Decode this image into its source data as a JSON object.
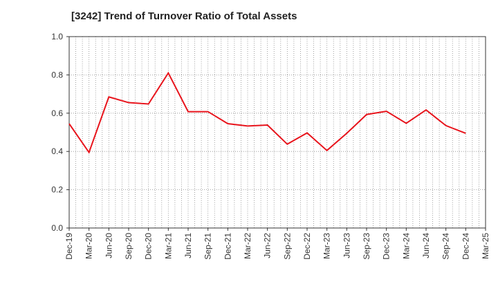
{
  "chart_data": {
    "type": "line",
    "title": "[3242]  Trend of Turnover Ratio of Total Assets",
    "xlabel": "",
    "ylabel": "",
    "ylim": [
      0,
      1.0
    ],
    "yticks": [
      "0.0",
      "0.2",
      "0.4",
      "0.6",
      "0.8",
      "1.0"
    ],
    "x_tick_labels": [
      "Dec-19",
      "Mar-20",
      "Jun-20",
      "Sep-20",
      "Dec-20",
      "Mar-21",
      "Jun-21",
      "Sep-21",
      "Dec-21",
      "Mar-22",
      "Jun-22",
      "Sep-22",
      "Dec-22",
      "Mar-23",
      "Jun-23",
      "Sep-23",
      "Dec-23",
      "Mar-24",
      "Jun-24",
      "Sep-24",
      "Dec-24",
      "Mar-25"
    ],
    "grid": true,
    "legend": "none",
    "series": [
      {
        "color": "#e8141c",
        "x": [
          "Dec-19",
          "Mar-20",
          "Jun-20",
          "Sep-20",
          "Dec-20",
          "Mar-21",
          "Jun-21",
          "Sep-21",
          "Dec-21",
          "Mar-22",
          "Jun-22",
          "Sep-22",
          "Dec-22",
          "Mar-23",
          "Jun-23",
          "Sep-23",
          "Dec-23",
          "Mar-24",
          "Jun-24",
          "Sep-24",
          "Dec-24"
        ],
        "values": [
          0.545,
          0.395,
          0.685,
          0.655,
          0.648,
          0.81,
          0.608,
          0.608,
          0.545,
          0.533,
          0.538,
          0.438,
          0.497,
          0.405,
          0.495,
          0.593,
          0.61,
          0.547,
          0.617,
          0.535,
          0.495
        ]
      }
    ]
  }
}
